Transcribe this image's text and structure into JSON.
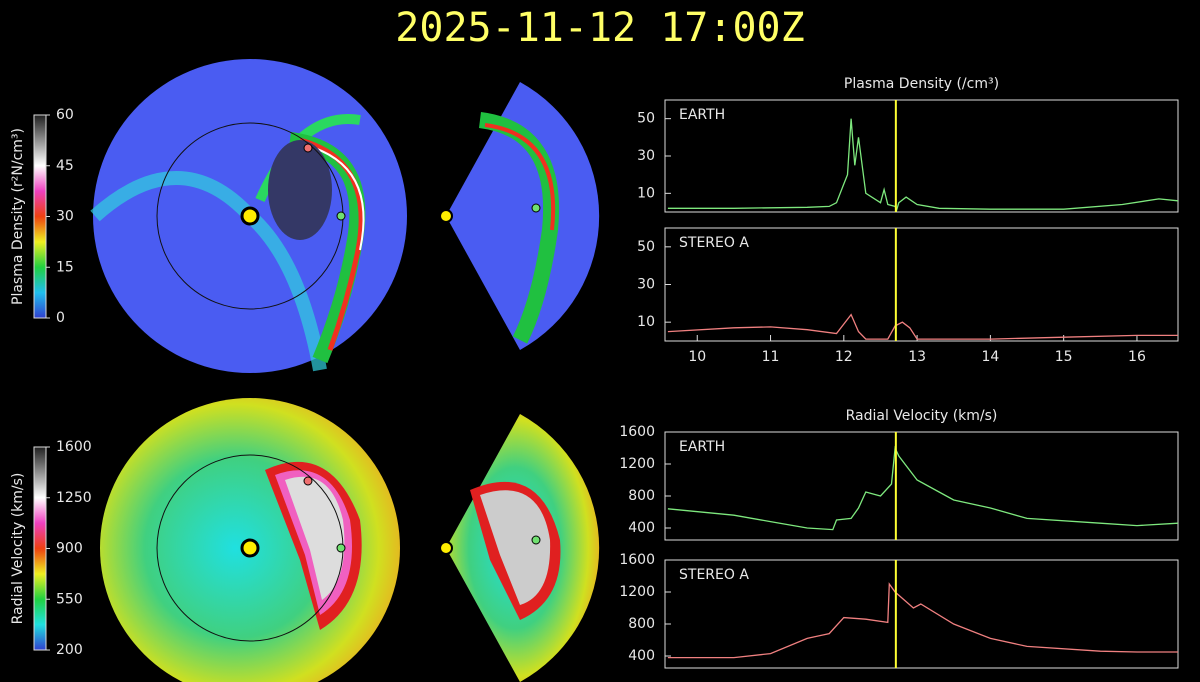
{
  "title": "2025-11-12 17:00Z",
  "chart_data": [
    {
      "type": "line",
      "title": "Plasma Density (/cm³)",
      "xlim": [
        9.56,
        16.56
      ],
      "ylim": [
        0,
        60
      ],
      "yticks": [
        10,
        30,
        50
      ],
      "marker_x": 12.71,
      "marker_color": "#ffff33",
      "series": [
        {
          "name": "EARTH",
          "color": "#7ee87e",
          "x": [
            9.6,
            10.5,
            11.5,
            11.8,
            11.9,
            12.0,
            12.05,
            12.1,
            12.15,
            12.2,
            12.3,
            12.5,
            12.55,
            12.6,
            12.7,
            12.72,
            12.75,
            12.85,
            13.0,
            13.3,
            14.0,
            15.0,
            15.8,
            16.3,
            16.56
          ],
          "values": [
            2,
            2,
            2.5,
            3,
            5,
            15,
            20,
            50,
            25,
            40,
            10,
            5,
            12,
            4,
            3,
            1,
            5,
            8,
            4,
            2,
            1.5,
            1.5,
            4,
            7,
            6
          ]
        }
      ]
    },
    {
      "type": "line",
      "xlim": [
        9.56,
        16.56
      ],
      "ylim": [
        0,
        60
      ],
      "yticks": [
        10,
        30,
        50
      ],
      "xticks": [
        10,
        11,
        12,
        13,
        14,
        15,
        16
      ],
      "marker_x": 12.71,
      "marker_color": "#ffff33",
      "series": [
        {
          "name": "STEREO A",
          "color": "#f08080",
          "x": [
            9.6,
            10.5,
            11.0,
            11.5,
            11.9,
            12.1,
            12.2,
            12.3,
            12.6,
            12.7,
            12.8,
            12.9,
            13.0,
            14.0,
            15.0,
            16.0,
            16.56
          ],
          "values": [
            5,
            7,
            7.5,
            6,
            4,
            14,
            5,
            1,
            1,
            8,
            10,
            7,
            1,
            1,
            2,
            3,
            3
          ]
        }
      ]
    },
    {
      "type": "line",
      "title": "Radial Velocity (km/s)",
      "xlim": [
        9.56,
        16.56
      ],
      "ylim": [
        250,
        1600
      ],
      "yticks": [
        400,
        800,
        1200,
        1600
      ],
      "marker_x": 12.71,
      "marker_color": "#ffff33",
      "series": [
        {
          "name": "EARTH",
          "color": "#7ee87e",
          "x": [
            9.6,
            10.5,
            11.0,
            11.5,
            11.85,
            11.9,
            12.1,
            12.2,
            12.3,
            12.5,
            12.65,
            12.7,
            12.75,
            13.0,
            13.4,
            13.5,
            14.0,
            14.5,
            15.5,
            16.0,
            16.56
          ],
          "values": [
            640,
            560,
            480,
            400,
            380,
            500,
            520,
            650,
            850,
            800,
            950,
            1400,
            1300,
            1000,
            800,
            750,
            650,
            520,
            460,
            430,
            460
          ]
        }
      ]
    },
    {
      "type": "line",
      "xlim": [
        9.56,
        16.56
      ],
      "ylim": [
        250,
        1600
      ],
      "yticks": [
        400,
        800,
        1200,
        1600
      ],
      "marker_x": 12.71,
      "marker_color": "#ffff33",
      "series": [
        {
          "name": "STEREO A",
          "color": "#f08080",
          "x": [
            9.6,
            10.5,
            11.0,
            11.5,
            11.8,
            12.0,
            12.3,
            12.6,
            12.62,
            12.7,
            12.95,
            13.05,
            13.5,
            14.0,
            14.5,
            15.5,
            16.0,
            16.56
          ],
          "values": [
            380,
            380,
            430,
            620,
            680,
            880,
            860,
            820,
            1300,
            1200,
            1000,
            1050,
            800,
            620,
            520,
            460,
            450,
            450
          ]
        }
      ]
    },
    {
      "type": "colorbar",
      "label": "Plasma Density (r²N/cm³)",
      "ylim": [
        0,
        60
      ],
      "yticks": [
        0,
        15,
        30,
        45,
        60
      ],
      "colors": [
        "#3040d0",
        "#20c0f0",
        "#20d040",
        "#f0f020",
        "#f04010",
        "#f040c0",
        "#ffffff",
        "#909090",
        "#202020"
      ]
    },
    {
      "type": "colorbar",
      "label": "Radial Velocity (km/s)",
      "ylim": [
        200,
        1600
      ],
      "yticks": [
        200,
        550,
        900,
        1250,
        1600
      ],
      "colors": [
        "#3040d0",
        "#20e0e0",
        "#20d040",
        "#f0f020",
        "#f04010",
        "#f040c0",
        "#ffffff",
        "#909090",
        "#202020"
      ]
    }
  ]
}
